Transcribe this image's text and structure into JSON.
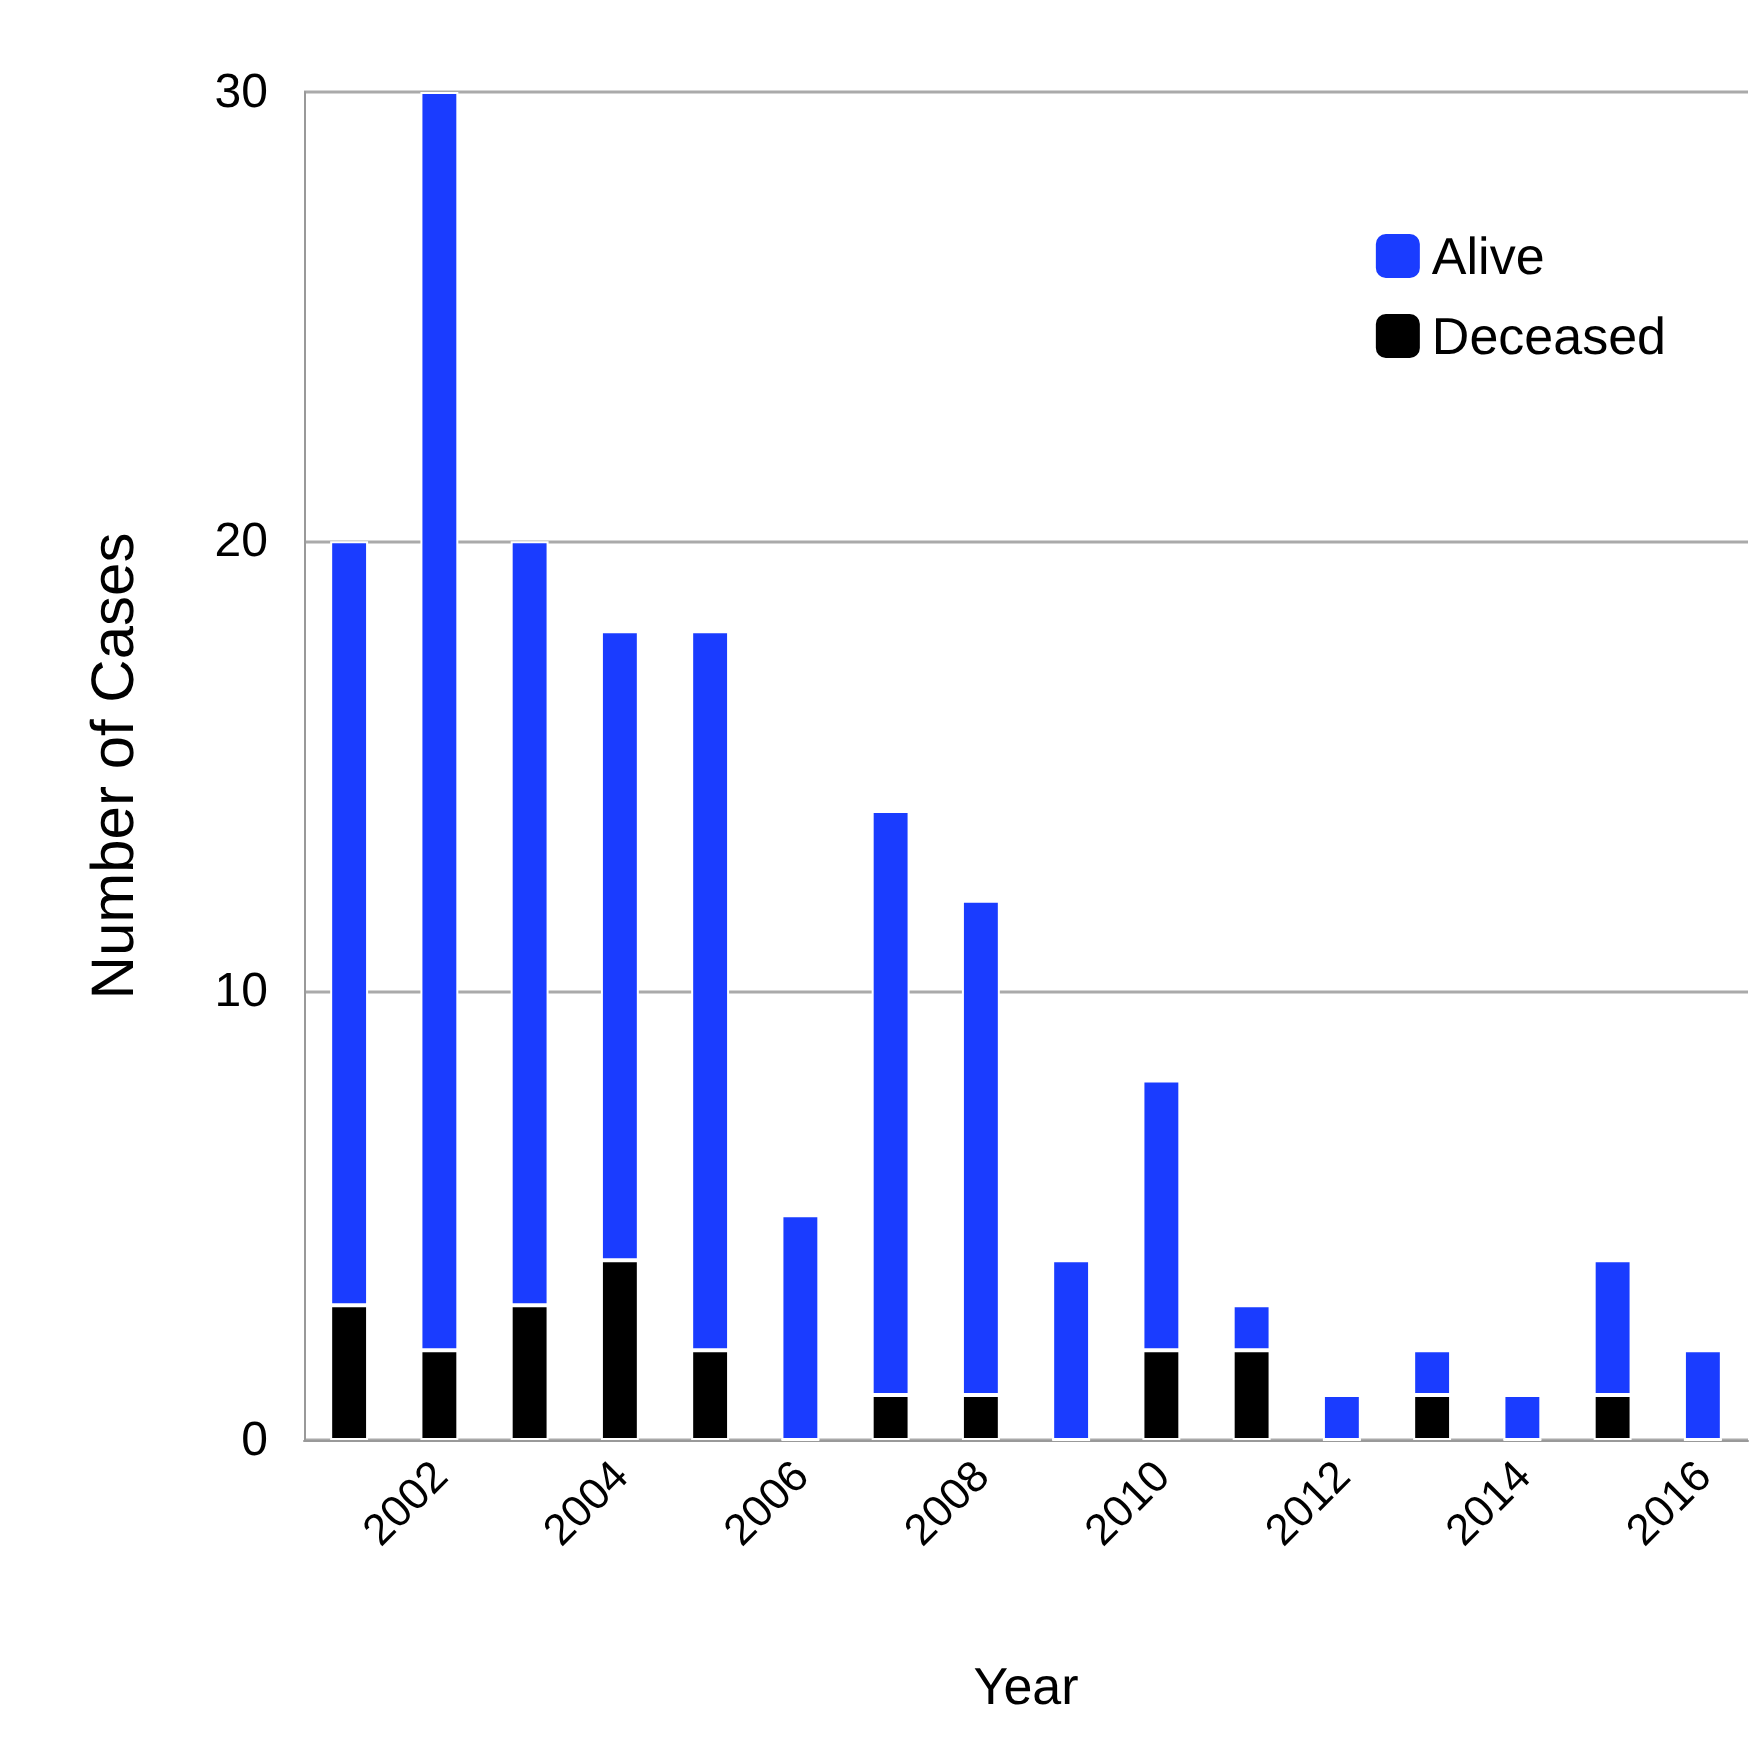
{
  "chart_data": {
    "type": "bar",
    "xlabel": "Year",
    "ylabel": "Number of Cases",
    "categories": [
      null,
      "2002",
      null,
      "2004",
      null,
      "2006",
      null,
      "2008",
      null,
      "2010",
      null,
      "2012",
      null,
      "2014",
      null,
      "2016"
    ],
    "series": [
      {
        "name": "Deceased",
        "color": "#000000",
        "values": [
          3,
          2,
          3,
          4,
          2,
          0,
          1,
          1,
          0,
          2,
          2,
          0,
          1,
          0,
          1,
          0
        ]
      },
      {
        "name": "Alive",
        "color": "#1a3cff",
        "values": [
          17,
          28,
          17,
          14,
          16,
          5,
          13,
          11,
          4,
          6,
          1,
          1,
          1,
          1,
          3,
          2
        ]
      }
    ],
    "stacked": true,
    "ylim": [
      0,
      30
    ],
    "yticks": [
      0,
      10,
      20,
      30
    ],
    "grid": "y",
    "legend": "top right"
  }
}
